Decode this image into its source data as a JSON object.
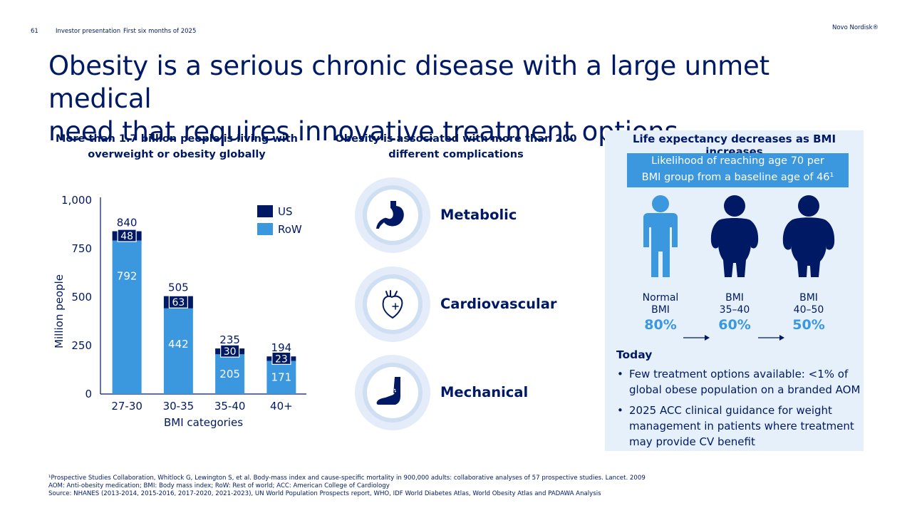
{
  "header": {
    "page_number": "61",
    "presentation": "Investor presentation",
    "period": "First six months of 2025",
    "brand": "Novo Nordisk®"
  },
  "title": {
    "line1": "Obesity is a serious chronic disease with a large unmet medical",
    "line2": "need that requires innovative treatment options"
  },
  "left": {
    "heading_line1": "More than 1.7 billion people is living with",
    "heading_line2": "overweight or obesity globally"
  },
  "chart_data": {
    "type": "bar",
    "stacked": true,
    "categories": [
      "27-30",
      "30-35",
      "35-40",
      "40+"
    ],
    "series": [
      {
        "name": "RoW",
        "values": [
          792,
          442,
          205,
          171
        ],
        "color": "#3b97de"
      },
      {
        "name": "US",
        "values": [
          48,
          63,
          30,
          23
        ],
        "color": "#001965"
      }
    ],
    "totals": [
      840,
      505,
      235,
      194
    ],
    "xlabel": "BMI categories",
    "ylabel": "Million people",
    "ylim": [
      0,
      1000
    ],
    "yticks": [
      0,
      250,
      500,
      750,
      1000
    ],
    "ytick_labels": [
      "0",
      "250",
      "500",
      "750",
      "1,000"
    ],
    "legend": "top-right",
    "grid": false
  },
  "middle": {
    "heading_line1": "Obesity is associated with more than 200",
    "heading_line2": "different complications",
    "complications": [
      {
        "label": "Metabolic",
        "icon": "stomach-icon"
      },
      {
        "label": "Cardiovascular",
        "icon": "heart-icon"
      },
      {
        "label": "Mechanical",
        "icon": "leg-joint-icon"
      }
    ]
  },
  "right": {
    "heading": "Life expectancy decreases as BMI increases",
    "likelihood_line1": "Likelihood of reaching age 70 per",
    "likelihood_line2": "BMI group from a baseline age of 46¹",
    "groups": [
      {
        "line1": "Normal",
        "line2": "BMI",
        "pct": "80%",
        "figure": "normal-person-icon"
      },
      {
        "line1": "BMI",
        "line2": "35–40",
        "pct": "60%",
        "figure": "obese-person-icon"
      },
      {
        "line1": "BMI",
        "line2": "40–50",
        "pct": "50%",
        "figure": "severely-obese-person-icon"
      }
    ],
    "today_label": "Today",
    "bullets": [
      "Few treatment options available:  <1% of global obese population on a branded AOM",
      "2025 ACC clinical guidance for weight management in patients where treatment may provide CV benefit"
    ]
  },
  "footnotes": {
    "line1": "¹Prospective Studies Collaboration, Whitlock G, Lewington S, et al. Body-mass index and cause-specific mortality in 900,000 adults: collaborative analyses of 57 prospective studies. Lancet. 2009",
    "line2": "AOM: Anti-obesity medication; BMI: Body mass index; RoW: Rest of world; ACC: American College of Cardiology",
    "line3": "Source: NHANES (2013-2014, 2015-2016, 2017-2020, 2021-2023), UN World Population Prospects report, WHO, IDF World Diabetes Atlas, World Obesity Atlas and PADAWA Analysis"
  },
  "colors": {
    "navy": "#001965",
    "accent_blue": "#3b97de",
    "panel_bg": "#e6f0fb",
    "ring_outer": "#e3ecf8",
    "ring_inner": "#cfdff3"
  }
}
